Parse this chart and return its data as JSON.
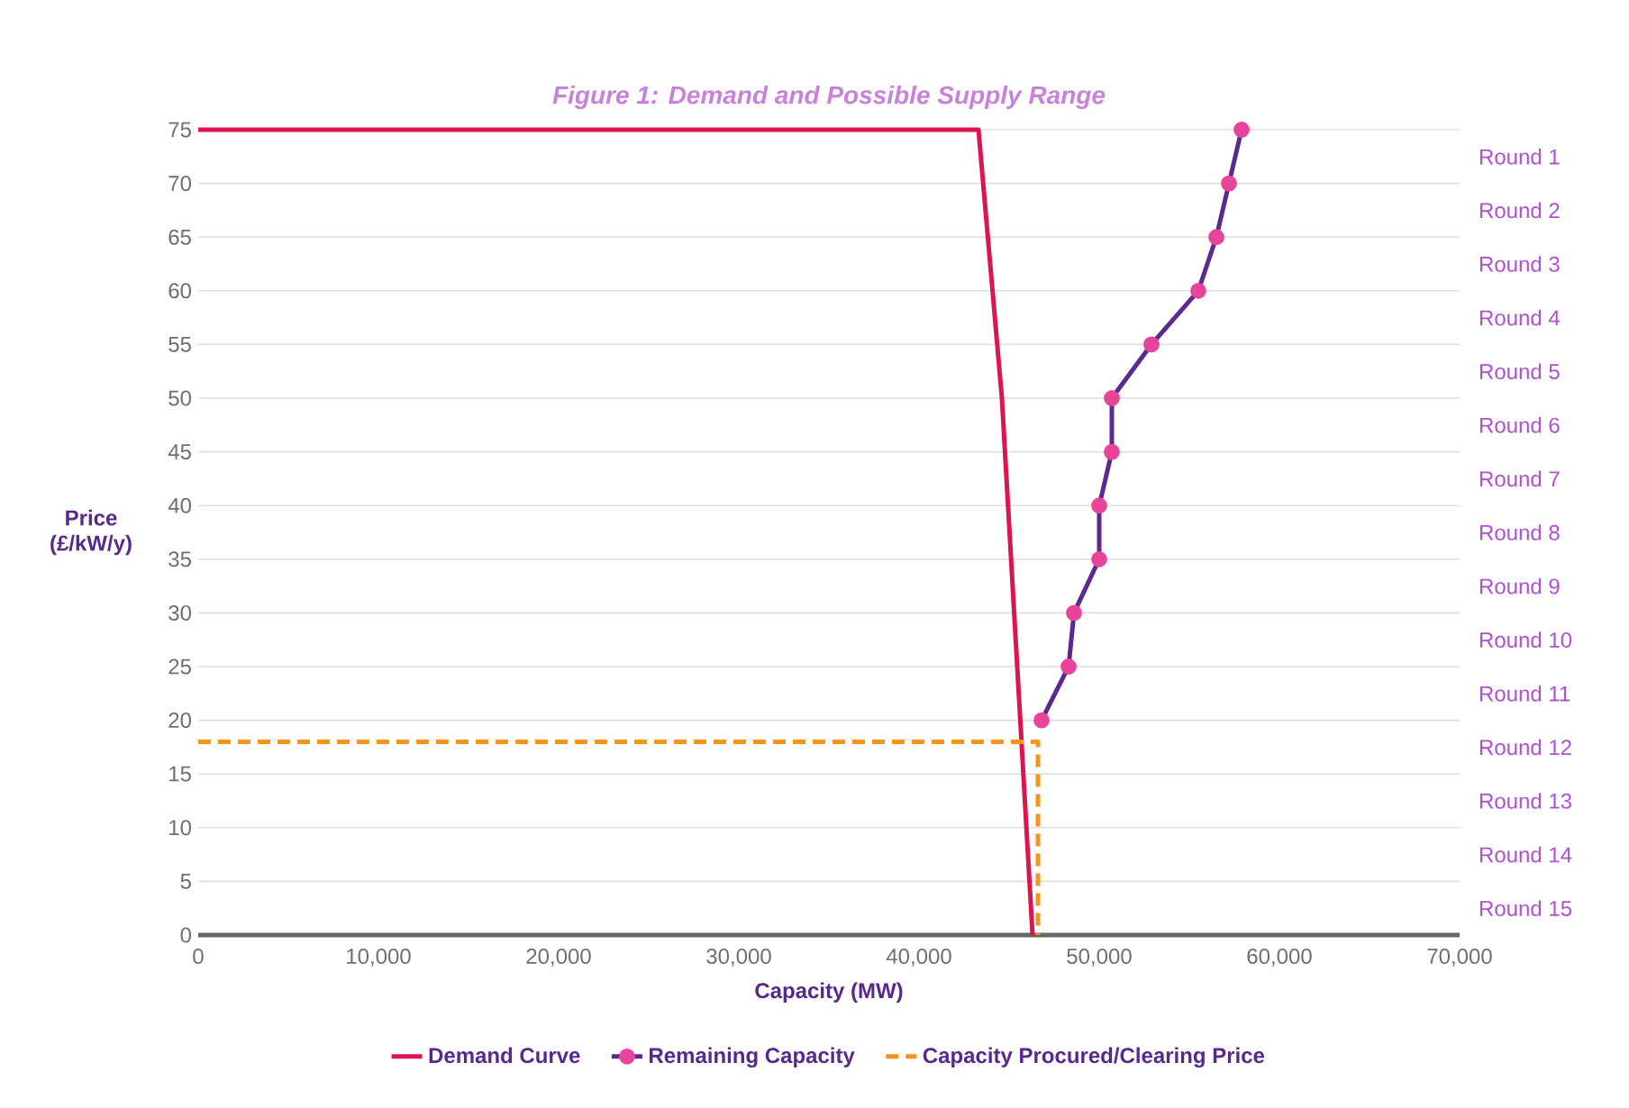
{
  "chart_data": {
    "type": "line",
    "title": "Figure 1: Demand and Possible Supply Range",
    "xlabel": "Capacity (MW)",
    "ylabel": "Price (£/kW/y)",
    "xlim": [
      0,
      70000
    ],
    "xticks": [
      {
        "value": 0,
        "label": "0"
      },
      {
        "value": 10000,
        "label": "10,000"
      },
      {
        "value": 20000,
        "label": "20,000"
      },
      {
        "value": 30000,
        "label": "30,000"
      },
      {
        "value": 40000,
        "label": "40,000"
      },
      {
        "value": 50000,
        "label": "50,000"
      },
      {
        "value": 60000,
        "label": "60,000"
      },
      {
        "value": 70000,
        "label": "70,000"
      }
    ],
    "ylim": [
      0,
      75
    ],
    "yticks": [
      0,
      5,
      10,
      15,
      20,
      25,
      30,
      35,
      40,
      45,
      50,
      55,
      60,
      65,
      70,
      75
    ],
    "annotations": [
      "Round 1",
      "Round 2",
      "Round 3",
      "Round 4",
      "Round 5",
      "Round 6",
      "Round 7",
      "Round 8",
      "Round 9",
      "Round 10",
      "Round 11",
      "Round 12",
      "Round 13",
      "Round 14",
      "Round 15"
    ],
    "grid": "y",
    "legend": "bottom",
    "series": [
      {
        "name": "Demand Curve",
        "color": "#dc1450",
        "x": [
          0,
          43300,
          44600,
          46300
        ],
        "values": [
          75,
          75,
          50,
          0
        ]
      },
      {
        "name": "Remaining Capacity",
        "color": "#5b2a90",
        "marker": "circle",
        "colors": [
          "#e8449a",
          "#e8449a",
          "#e8449a",
          "#e8449a",
          "#e8449a",
          "#e8449a",
          "#e8449a",
          "#e8449a",
          "#e8449a",
          "#e8449a",
          "#e8449a",
          "#e8449a"
        ],
        "x": [
          57900,
          57200,
          56500,
          55500,
          52900,
          50700,
          50700,
          50000,
          50000,
          48600,
          48300,
          46800
        ],
        "values": [
          75,
          70,
          65,
          60,
          55,
          50,
          45,
          40,
          35,
          30,
          25,
          20
        ]
      },
      {
        "name": "Capacity Procured/Clearing Price",
        "color": "#f7941d",
        "line_style": "dashed",
        "x": [
          0,
          46600,
          46600
        ],
        "values": [
          18,
          18,
          0
        ]
      }
    ]
  }
}
